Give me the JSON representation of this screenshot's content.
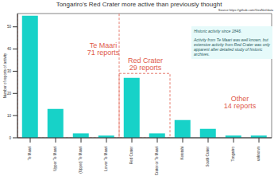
{
  "chart_data": {
    "type": "bar",
    "title": "Tongariro's Red Crater more active than previously thought",
    "source": "Source:https://github.com/GeoNet/data",
    "y_label": "Number of reports of activity",
    "categories": [
      "Te Maari",
      "Upper Te Maari",
      "(Upper) Te Maari",
      "Lower Te Maari",
      "Red Crater",
      "Red Crater or Te Maari",
      "Ketetahi",
      "South Crater",
      "Tongariro",
      "unknown"
    ],
    "values": [
      55,
      13,
      2,
      1,
      27,
      2,
      8,
      4,
      1,
      1
    ],
    "color": "#17d2c8",
    "ylim": [
      0,
      56
    ],
    "yticks": [
      0,
      10,
      20,
      30,
      40,
      50
    ],
    "grid": false,
    "groups": [
      {
        "name": "Te Maari",
        "reports": 71,
        "label": "71 reports",
        "from": "Te Maari",
        "to": "Lower Te Maari",
        "color": "#e05a4a",
        "line_style": "dashed"
      },
      {
        "name": "Red Crater",
        "reports": 29,
        "label": "29 reports",
        "from": "Red Crater",
        "to": "Red Crater or Te Maari",
        "color": "#e05a4a",
        "line_style": "dashed"
      },
      {
        "name": "Other",
        "reports": 14,
        "label": "14 reports",
        "from": "Ketetahi",
        "to": "unknown",
        "color": "#e05a4a",
        "line_style": "none"
      }
    ],
    "annotation": [
      "Historic activity since 1846.",
      "Activity from Te Maari was well known, but extensive activity from Red Crater was only apparent after detailed study of historic archives."
    ]
  }
}
